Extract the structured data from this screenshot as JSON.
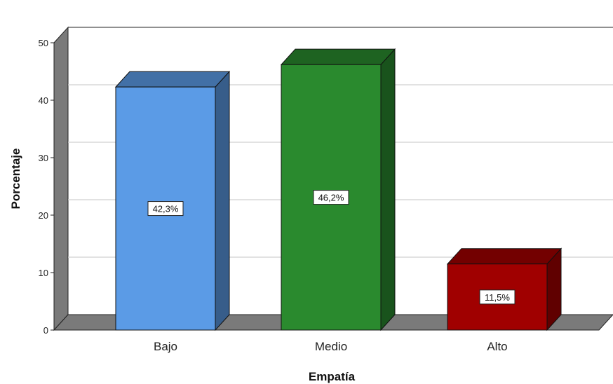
{
  "chart_data": {
    "type": "bar",
    "title": "",
    "xlabel": "Empatía",
    "ylabel": "Porcentaje",
    "categories": [
      "Bajo",
      "Medio",
      "Alto"
    ],
    "values": [
      42.3,
      46.2,
      11.5
    ],
    "data_labels": [
      "42,3%",
      "46,2%",
      "11,5%"
    ],
    "ylim": [
      0,
      50
    ],
    "yticks": [
      "0",
      "10",
      "20",
      "30",
      "40",
      "50"
    ],
    "grid": true,
    "style": "3d",
    "colors": [
      "#5B9BE6",
      "#2A8A2E",
      "#A00000"
    ]
  }
}
